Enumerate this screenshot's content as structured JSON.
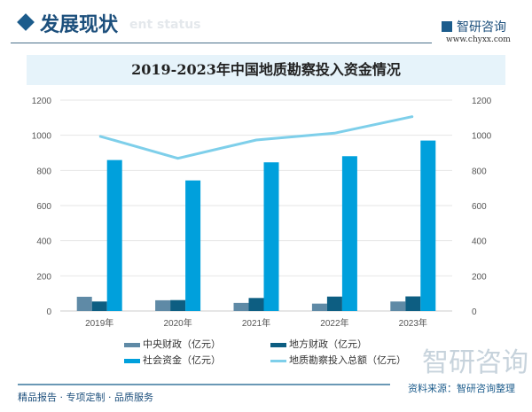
{
  "header": {
    "section_title": "发展现状",
    "section_title_en": "ent status",
    "logo_text": "智研咨询",
    "logo_url": "www.chyxx.com"
  },
  "footer": {
    "slogan": "精品报告 · 专项定制 · 品质服务",
    "source": "资料来源：智研咨询整理",
    "watermark": "智研咨询"
  },
  "colors": {
    "central": "#5f8aa6",
    "local": "#0d5e82",
    "social": "#00a0dc",
    "total": "#7ecfea"
  },
  "chart_data": {
    "type": "bar+line",
    "title": "2019-2023年中国地质勘察投入资金情况",
    "categories": [
      "2019年",
      "2020年",
      "2021年",
      "2022年",
      "2023年"
    ],
    "series": [
      {
        "name": "中央财政（亿元）",
        "type": "bar",
        "axis": "left",
        "values": [
          81,
          61,
          46,
          42,
          54
        ]
      },
      {
        "name": "地方财政（亿元）",
        "type": "bar",
        "axis": "left",
        "values": [
          54,
          62,
          74,
          82,
          83
        ]
      },
      {
        "name": "社会资金（亿元）",
        "type": "bar",
        "axis": "left",
        "values": [
          859,
          743,
          846,
          881,
          970
        ]
      },
      {
        "name": "地质勘察投入总额（亿元）",
        "type": "line",
        "axis": "right",
        "values": [
          995,
          869,
          973,
          1012,
          1107
        ]
      }
    ],
    "y_left": {
      "range": [
        0,
        1200
      ],
      "ticks": [
        0,
        200,
        400,
        600,
        800,
        1000,
        1200
      ]
    },
    "y_right": {
      "range": [
        0,
        1200
      ],
      "ticks": [
        0,
        200,
        400,
        600,
        800,
        1000,
        1200
      ]
    },
    "grid": true,
    "legend": "bottom"
  }
}
